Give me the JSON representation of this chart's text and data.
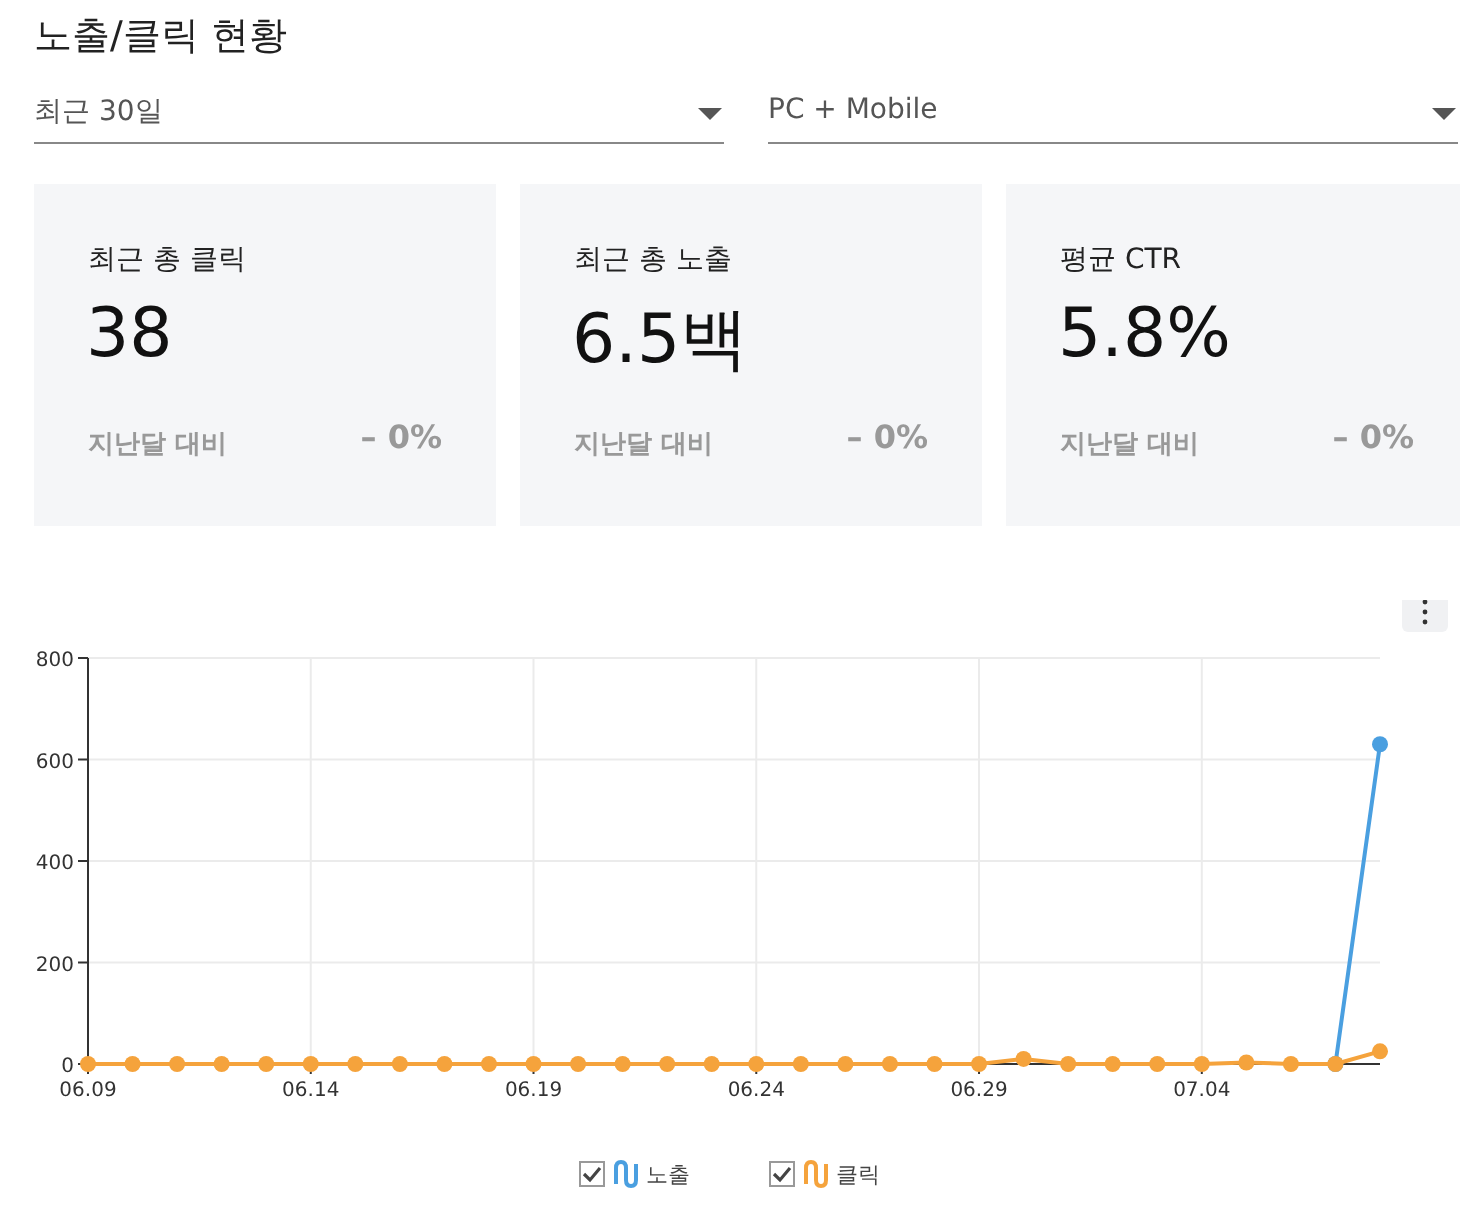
{
  "chart_data": [
    {
      "type": "other",
      "title": "노출/클릭 현황",
      "annotations": [
        "최근 30일",
        "PC + Mobile"
      ]
    },
    {
      "type": "other",
      "title": "최근 총 클릭",
      "annotations": [
        "38",
        "지난달 대비",
        "– 0%"
      ]
    },
    {
      "type": "other",
      "title": "최근 총 노출",
      "annotations": [
        "6.5백",
        "지난달 대비",
        "– 0%"
      ]
    },
    {
      "type": "other",
      "title": "평균 CTR",
      "annotations": [
        "5.8%",
        "지난달 대비",
        "– 0%"
      ]
    },
    {
      "type": "line",
      "x": [
        "--06-09",
        "--06-10",
        "--06-11",
        "--06-12",
        "--06-13",
        "--06-14",
        "--06-15",
        "--06-16",
        "--06-17",
        "--06-18",
        "--06-19",
        "--06-20",
        "--06-21",
        "--06-22",
        "--06-23",
        "--06-24",
        "--06-25",
        "--06-26",
        "--06-27",
        "--06-28",
        "--06-29",
        "--06-30",
        "--07-01",
        "--07-02",
        "--07-03",
        "--07-04",
        "--07-05",
        "--07-06",
        "--07-07",
        "--07-08"
      ],
      "series": [
        {
          "name": "노출",
          "color": "#4a9fe0",
          "values": [
            null,
            null,
            null,
            null,
            null,
            null,
            null,
            null,
            null,
            null,
            null,
            null,
            null,
            null,
            null,
            null,
            null,
            null,
            null,
            null,
            null,
            null,
            null,
            null,
            null,
            null,
            null,
            null,
            0,
            630
          ]
        },
        {
          "name": "클릭",
          "color": "#f5a33c",
          "values": [
            0,
            0,
            0,
            0,
            0,
            0,
            0,
            0,
            0,
            0,
            0,
            0,
            0,
            0,
            0,
            0,
            0,
            0,
            0,
            0,
            0,
            10,
            0,
            0,
            0,
            0,
            3,
            0,
            0,
            25
          ]
        }
      ],
      "xlim": [
        "--06-09",
        "--07-08"
      ],
      "xticks": [
        {
          "value": "--06-09",
          "label": "06.09"
        },
        {
          "value": "--06-14",
          "label": "06.14"
        },
        {
          "value": "--06-19",
          "label": "06.19"
        },
        {
          "value": "--06-24",
          "label": "06.24"
        },
        {
          "value": "--06-29",
          "label": "06.29"
        },
        {
          "value": "--07-04",
          "label": "07.04"
        }
      ],
      "ylim": [
        0,
        800
      ],
      "yticks": [
        0,
        200,
        400,
        600,
        800
      ],
      "grid": true,
      "legend": "bottom",
      "marker": "circle",
      "line_style": "solid"
    }
  ]
}
